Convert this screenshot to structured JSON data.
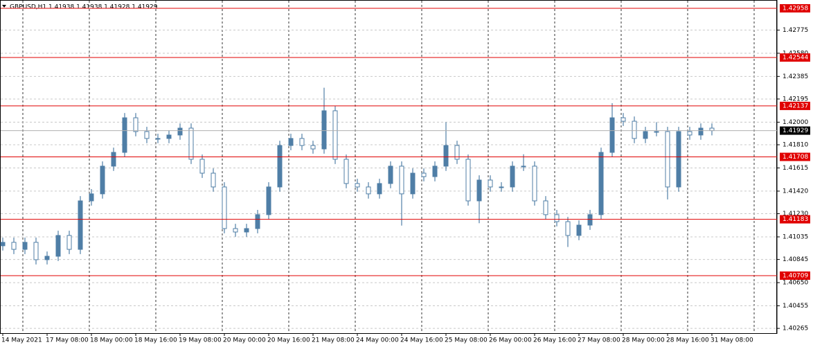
{
  "chart_data": {
    "type": "candlestick",
    "title": "GBPUSD,H1  1.41938 1.41938 1.41928 1.41929",
    "color": "#4f7ea6",
    "level_color": "#e00000",
    "grid": true,
    "ylim": [
      1.40225,
      1.43028
    ],
    "yticks": [
      1.42775,
      {
        "value": 1.4258,
        "label": "1.42580"
      },
      1.42385,
      1.42195,
      {
        "value": 1.42,
        "label": "1.42000"
      },
      {
        "value": 1.4181,
        "label": "1.41810"
      },
      1.41615,
      {
        "value": 1.4142,
        "label": "1.41420"
      },
      {
        "value": 1.4123,
        "label": "1.41230"
      },
      1.41035,
      1.40845,
      {
        "value": 1.4065,
        "label": "1.40650"
      },
      1.40455,
      1.40265
    ],
    "levels": [
      1.42958,
      1.42544,
      1.42137,
      1.41708,
      1.41183,
      1.40709
    ],
    "last": 1.41929,
    "xtick_labels": [
      "14 May 2021",
      "17 May 08:00",
      "18 May 00:00",
      "18 May 16:00",
      "19 May 08:00",
      "20 May 00:00",
      "20 May 16:00",
      "21 May 08:00",
      "24 May 00:00",
      "24 May 16:00",
      "25 May 08:00",
      "26 May 00:00",
      "26 May 16:00",
      "27 May 08:00",
      "28 May 00:00",
      "28 May 16:00",
      "31 May 08:00"
    ],
    "open": [
      1.4096,
      1.40989,
      1.4093,
      1.40989,
      1.40843,
      1.40872,
      1.41047,
      1.4093,
      1.41338,
      1.41397,
      1.4163,
      1.41746,
      1.42037,
      1.41921,
      1.41863,
      1.41863,
      1.41892,
      1.4195,
      1.41688,
      1.41571,
      1.41455,
      1.41105,
      1.41076,
      1.41105,
      1.41222,
      1.41455,
      1.41804,
      1.41863,
      1.41804,
      1.41775,
      1.42096,
      1.41688,
      1.41484,
      1.41455,
      1.41397,
      1.41484,
      1.4163,
      1.41397,
      1.41571,
      1.41542,
      1.4163,
      1.41804,
      1.41688,
      1.41338,
      1.41513,
      1.41455,
      1.41455,
      1.4163,
      1.4163,
      1.41338,
      1.41222,
      1.41163,
      1.41047,
      1.41134,
      1.41222,
      1.41746,
      1.42037,
      1.42008,
      1.41863,
      1.41921,
      1.41921,
      1.41455,
      1.41921,
      1.41892,
      1.4195
    ],
    "high": [
      1.41029,
      1.41029,
      1.41029,
      1.41029,
      1.40912,
      1.41087,
      1.41087,
      1.41378,
      1.41437,
      1.4167,
      1.41786,
      1.42077,
      1.42077,
      1.41961,
      1.41903,
      1.41932,
      1.4199,
      1.4199,
      1.41728,
      1.41611,
      1.41495,
      1.41145,
      1.41145,
      1.41262,
      1.41495,
      1.41844,
      1.41903,
      1.41903,
      1.41844,
      1.4229,
      1.42136,
      1.41728,
      1.41524,
      1.41495,
      1.41524,
      1.4167,
      1.4167,
      1.41611,
      1.41611,
      1.4167,
      1.42,
      1.41844,
      1.41728,
      1.41553,
      1.41553,
      1.41495,
      1.4167,
      1.4173,
      1.4167,
      1.41378,
      1.41262,
      1.41203,
      1.41174,
      1.41262,
      1.41786,
      1.4216,
      1.42077,
      1.42048,
      1.41961,
      1.42,
      1.41961,
      1.41961,
      1.41961,
      1.4199,
      1.4199
    ],
    "low": [
      1.4092,
      1.4089,
      1.4089,
      1.40803,
      1.40803,
      1.40832,
      1.4089,
      1.4089,
      1.41298,
      1.41357,
      1.4159,
      1.41706,
      1.41881,
      1.41823,
      1.41823,
      1.41823,
      1.41852,
      1.41648,
      1.41531,
      1.41415,
      1.41065,
      1.41036,
      1.41036,
      1.41065,
      1.41182,
      1.41415,
      1.41764,
      1.41764,
      1.41735,
      1.41735,
      1.41648,
      1.41444,
      1.41415,
      1.41357,
      1.41357,
      1.41444,
      1.4113,
      1.41357,
      1.41502,
      1.41502,
      1.4159,
      1.41648,
      1.41298,
      1.4115,
      1.41415,
      1.41415,
      1.41415,
      1.4159,
      1.41298,
      1.41182,
      1.41123,
      1.4095,
      1.41007,
      1.41094,
      1.41182,
      1.41706,
      1.41968,
      1.41823,
      1.41823,
      1.41881,
      1.4135,
      1.41415,
      1.41852,
      1.41852,
      1.41889
    ],
    "close": [
      1.40989,
      1.4093,
      1.40989,
      1.40843,
      1.40872,
      1.41047,
      1.4093,
      1.41338,
      1.41397,
      1.4163,
      1.41746,
      1.42037,
      1.41921,
      1.41863,
      1.41863,
      1.41892,
      1.4195,
      1.41688,
      1.41571,
      1.41455,
      1.41105,
      1.41076,
      1.41105,
      1.41222,
      1.41455,
      1.41804,
      1.41863,
      1.41804,
      1.41775,
      1.42096,
      1.41688,
      1.41484,
      1.41455,
      1.41397,
      1.41484,
      1.4163,
      1.41397,
      1.41571,
      1.41542,
      1.4163,
      1.41804,
      1.41688,
      1.41338,
      1.41513,
      1.41455,
      1.41455,
      1.4163,
      1.4163,
      1.41338,
      1.41222,
      1.41163,
      1.41047,
      1.41134,
      1.41222,
      1.41746,
      1.42037,
      1.42008,
      1.41863,
      1.41921,
      1.41921,
      1.41455,
      1.41921,
      1.41892,
      1.4195,
      1.41929
    ]
  }
}
